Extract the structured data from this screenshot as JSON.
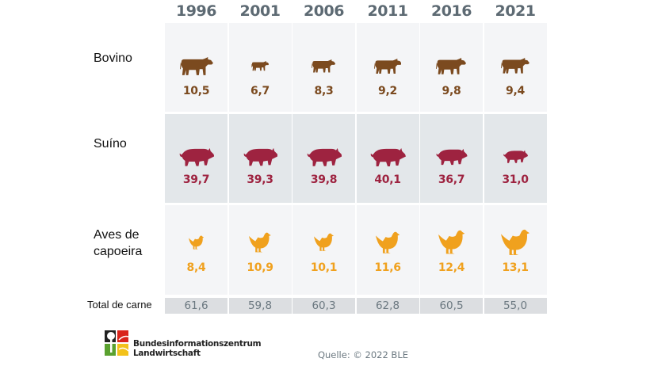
{
  "chart_data": {
    "type": "table",
    "categories": [
      "1996",
      "2001",
      "2006",
      "2011",
      "2016",
      "2021"
    ],
    "series": [
      {
        "name": "Bovino",
        "values": [
          10.5,
          6.7,
          8.3,
          9.2,
          9.8,
          9.4
        ],
        "labels": [
          "10,5",
          "6,7",
          "8,3",
          "9,2",
          "9,8",
          "9,4"
        ],
        "icon": "cow-icon",
        "color": "#7b4a1f",
        "bg": "#f4f5f7"
      },
      {
        "name": "Suíno",
        "values": [
          39.7,
          39.3,
          39.8,
          40.1,
          36.7,
          31.0
        ],
        "labels": [
          "39,7",
          "39,3",
          "39,8",
          "40,1",
          "36,7",
          "31,0"
        ],
        "icon": "pig-icon",
        "color": "#9e2340",
        "bg": "#e3e7ea"
      },
      {
        "name": "Aves de capoeira",
        "values": [
          8.4,
          10.9,
          10.1,
          11.6,
          12.4,
          13.1
        ],
        "labels": [
          "8,4",
          "10,9",
          "10,1",
          "11,6",
          "12,4",
          "13,1"
        ],
        "icon": "chicken-icon",
        "color": "#f0a11e",
        "bg": "#f4f5f7"
      }
    ],
    "total": {
      "name": "Total de carne",
      "values": [
        61.6,
        59.8,
        60.3,
        62.8,
        60.5,
        55.0
      ],
      "labels": [
        "61,6",
        "59,8",
        "60,3",
        "62,8",
        "60,5",
        "55,0"
      ]
    }
  },
  "footer": {
    "org_line1": "Bundesinformationszentrum",
    "org_line2": "Landwirtschaft",
    "source": "Quelle: © 2022 BLE"
  }
}
